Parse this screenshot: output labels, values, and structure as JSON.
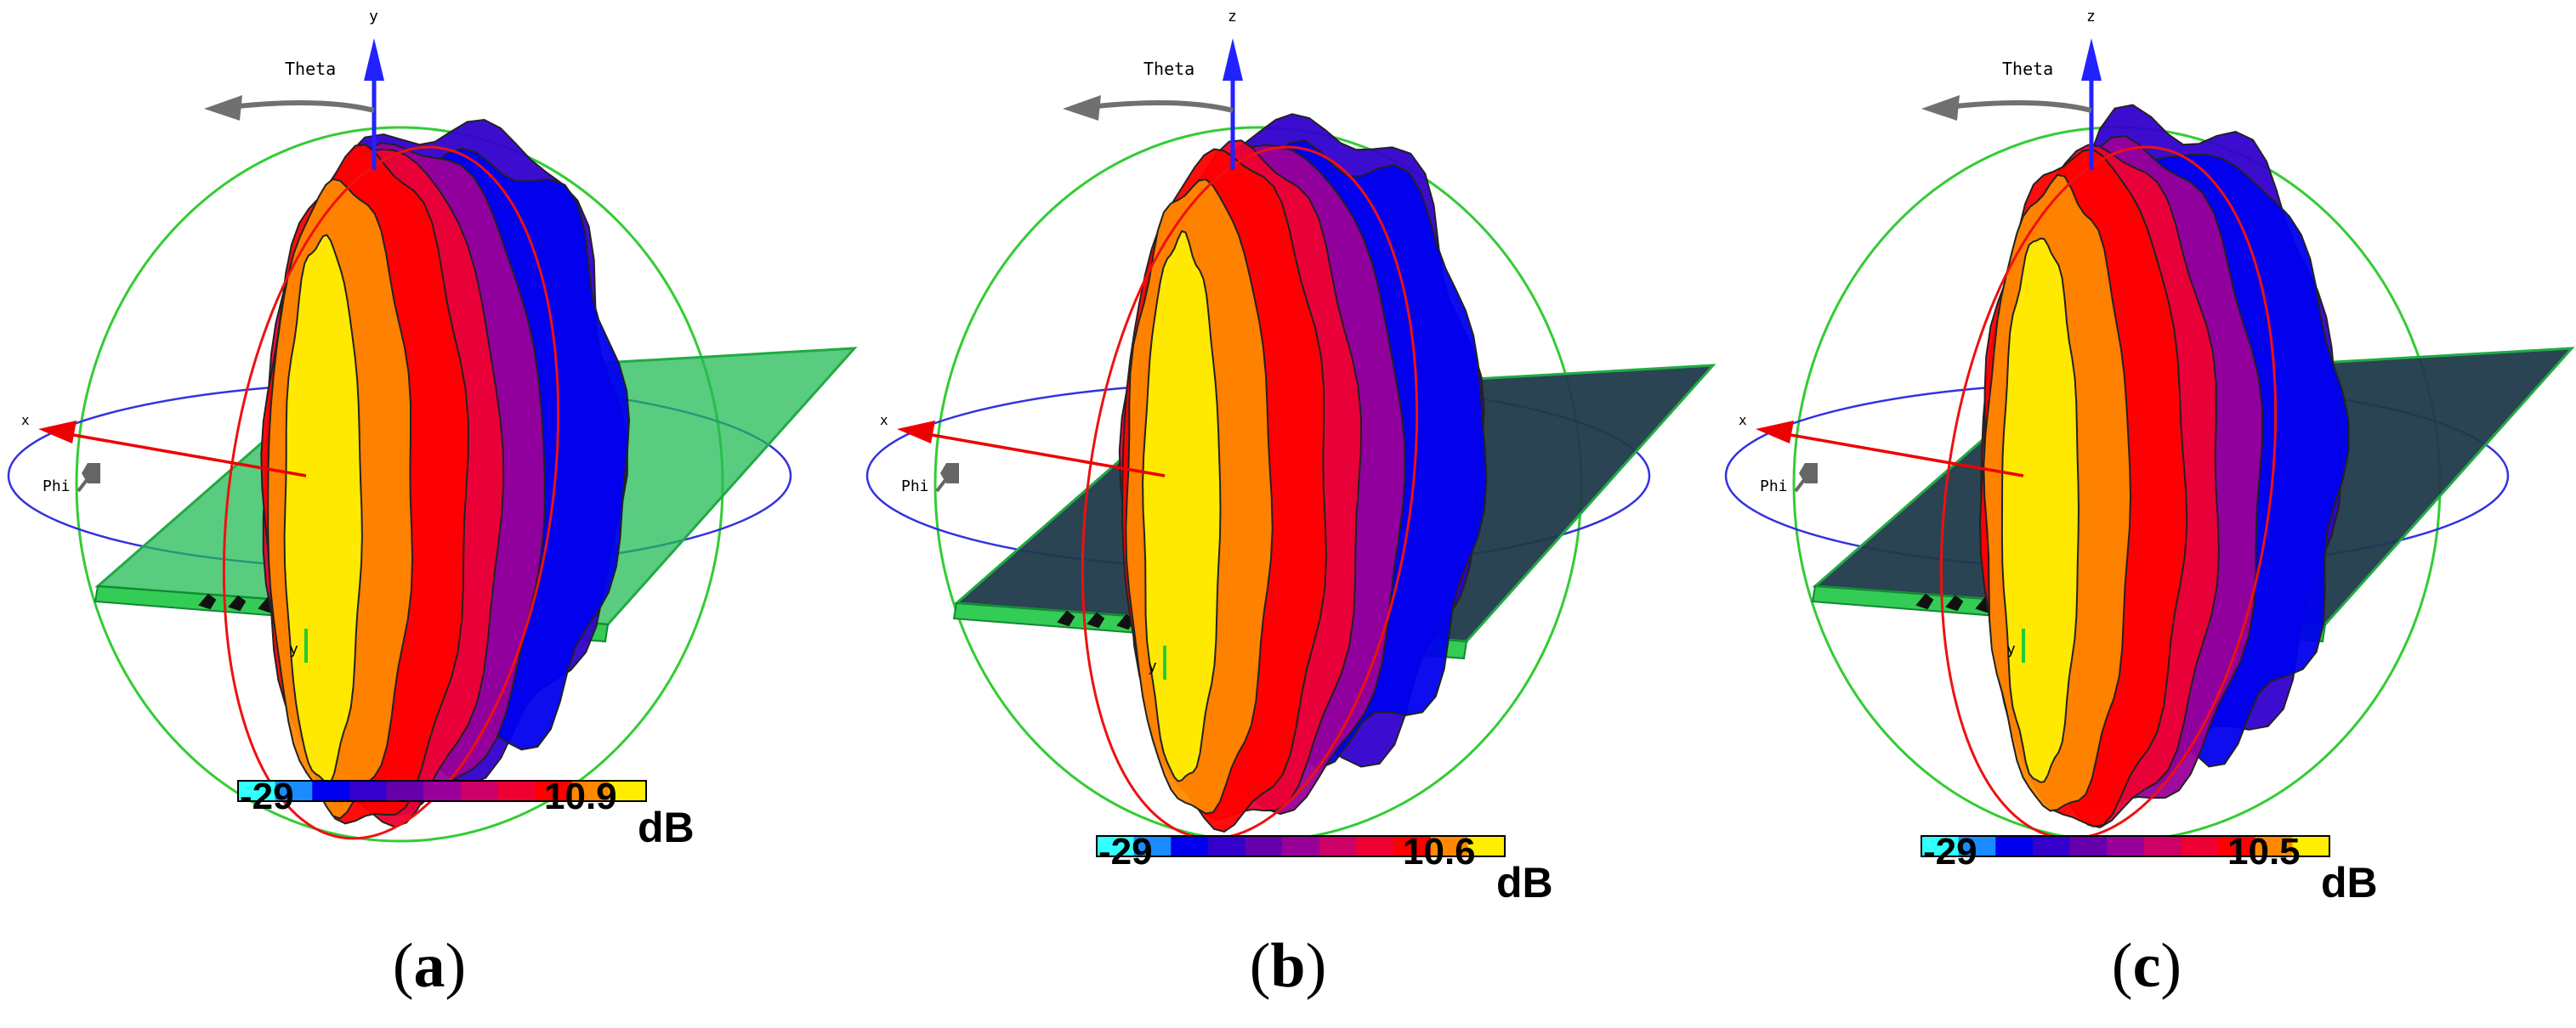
{
  "panels": [
    {
      "id": "a",
      "label": "a",
      "colorbar": {
        "min": "-29",
        "max": "10.9",
        "unit": "dB"
      },
      "axes": {
        "vertical": "y",
        "horizontal": "x",
        "depth": "y",
        "theta": "Theta",
        "phi": "Phi"
      },
      "board": "green"
    },
    {
      "id": "b",
      "label": "b",
      "colorbar": {
        "min": "-29",
        "max": "10.6",
        "unit": "dB"
      },
      "axes": {
        "vertical": "z",
        "horizontal": "x",
        "depth": "y",
        "theta": "Theta",
        "phi": "Phi"
      },
      "board": "dark"
    },
    {
      "id": "c",
      "label": "c",
      "colorbar": {
        "min": "-29",
        "max": "10.5",
        "unit": "dB"
      },
      "axes": {
        "vertical": "z",
        "horizontal": "x",
        "depth": "y",
        "theta": "Theta",
        "phi": "Phi"
      },
      "board": "dark"
    }
  ],
  "colors": {
    "scale": [
      "#33ffff",
      "#1a8cff",
      "#0000ee",
      "#3300cc",
      "#6600aa",
      "#990099",
      "#cc0066",
      "#ee0033",
      "#ff0000",
      "#ff8800",
      "#ffee00"
    ],
    "greenCircle": "#33cc33",
    "blueCircle": "#3333dd",
    "redCircle": "#ee1111",
    "zAxis": "#2222ff",
    "xAxis": "#ee0000",
    "thetaArrow": "#707070",
    "boardGreen": "#22bb55",
    "boardDark": "#1f3a4a"
  }
}
